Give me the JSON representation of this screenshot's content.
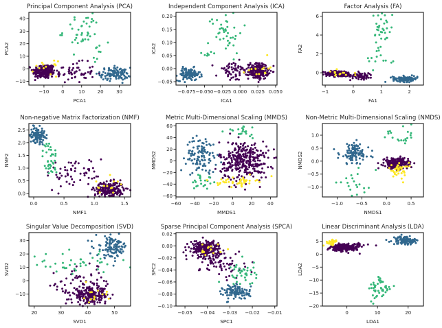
{
  "figure": {
    "layout": "3x3 grid of scatter plots",
    "class_colors": {
      "class_0": "#440154",
      "class_1": "#31688e",
      "class_2": "#35b779",
      "class_3": "#fde725"
    }
  },
  "chart_data": [
    {
      "type": "scatter",
      "title": "Principal Component Analysis (PCA)",
      "xlabel": "PCA1",
      "ylabel": "PCA2",
      "xlim": [
        -18,
        36
      ],
      "ylim": [
        -13,
        45
      ],
      "xticks": [
        -10,
        0,
        10,
        20,
        30
      ],
      "xticklabels": [
        "−10",
        "0",
        "10",
        "20",
        "30"
      ],
      "yticks": [
        -10,
        0,
        10,
        20,
        30,
        40
      ],
      "yticklabels": [
        "−10",
        "0",
        "10",
        "20",
        "30",
        "40"
      ],
      "clusters": [
        {
          "class": 0,
          "cx": -10,
          "cy": -2,
          "sx": 3,
          "sy": 3,
          "n": 220
        },
        {
          "class": 0,
          "cx": 5,
          "cy": -3,
          "sx": 6,
          "sy": 4,
          "n": 60
        },
        {
          "class": 1,
          "cx": 28,
          "cy": -4,
          "sx": 4,
          "sy": 2.5,
          "n": 110
        },
        {
          "class": 2,
          "cx": 10,
          "cy": 30,
          "sx": 5,
          "sy": 8,
          "n": 40
        },
        {
          "class": 2,
          "cx": 19,
          "cy": 13,
          "sx": 2,
          "sy": 3,
          "n": 8
        },
        {
          "class": 3,
          "cx": -9,
          "cy": 0,
          "sx": 3,
          "sy": 3,
          "n": 14
        }
      ]
    },
    {
      "type": "scatter",
      "title": "Independent Component Analysis (ICA)",
      "xlabel": "ICA1",
      "ylabel": "ICA2",
      "xlim": [
        -0.09,
        0.052
      ],
      "ylim": [
        -0.063,
        0.215
      ],
      "xticks": [
        -0.075,
        -0.05,
        -0.025,
        0.0,
        0.025,
        0.05
      ],
      "xticklabels": [
        "−0.075",
        "−0.050",
        "−0.025",
        "0.000",
        "0.025",
        "0.050"
      ],
      "yticks": [
        -0.05,
        0.0,
        0.05,
        0.1,
        0.15,
        0.2
      ],
      "yticklabels": [
        "−0.05",
        "0.00",
        "0.05",
        "0.10",
        "0.15",
        "0.20"
      ],
      "clusters": [
        {
          "class": 0,
          "cx": 0.026,
          "cy": -0.01,
          "sx": 0.007,
          "sy": 0.015,
          "n": 220
        },
        {
          "class": 0,
          "cx": -0.01,
          "cy": -0.01,
          "sx": 0.012,
          "sy": 0.02,
          "n": 60
        },
        {
          "class": 1,
          "cx": -0.072,
          "cy": -0.022,
          "sx": 0.008,
          "sy": 0.012,
          "n": 110
        },
        {
          "class": 2,
          "cx": -0.02,
          "cy": 0.14,
          "sx": 0.012,
          "sy": 0.04,
          "n": 40
        },
        {
          "class": 2,
          "cx": -0.045,
          "cy": 0.06,
          "sx": 0.005,
          "sy": 0.01,
          "n": 8
        },
        {
          "class": 3,
          "cx": 0.025,
          "cy": 0.0,
          "sx": 0.008,
          "sy": 0.015,
          "n": 14
        }
      ]
    },
    {
      "type": "scatter",
      "title": "Factor Analysis (FA)",
      "xlabel": "FA1",
      "ylabel": "FA2",
      "xlim": [
        -1.1,
        2.5
      ],
      "ylim": [
        -1.3,
        6.4
      ],
      "xticks": [
        -1,
        0,
        1,
        2
      ],
      "xticklabels": [
        "−1",
        "0",
        "1",
        "2"
      ],
      "yticks": [
        0,
        2,
        4,
        6
      ],
      "yticklabels": [
        "0",
        "2",
        "4",
        "6"
      ],
      "clusters": [
        {
          "class": 0,
          "cx": -0.5,
          "cy": -0.1,
          "sx": 0.25,
          "sy": 0.15,
          "n": 220
        },
        {
          "class": 0,
          "cx": 0.3,
          "cy": -0.3,
          "sx": 0.2,
          "sy": 0.2,
          "n": 60
        },
        {
          "class": 1,
          "cx": 1.85,
          "cy": -0.65,
          "sx": 0.22,
          "sy": 0.15,
          "n": 110
        },
        {
          "class": 2,
          "cx": 1.0,
          "cy": 4.5,
          "sx": 0.2,
          "sy": 1.2,
          "n": 40
        },
        {
          "class": 2,
          "cx": 0.8,
          "cy": 1.2,
          "sx": 0.4,
          "sy": 0.6,
          "n": 8
        },
        {
          "class": 3,
          "cx": -0.5,
          "cy": 0.0,
          "sx": 0.25,
          "sy": 0.2,
          "n": 14
        }
      ]
    },
    {
      "type": "scatter",
      "title": "Non-negative Matrix Factorization (NMF)",
      "xlabel": "NMF1",
      "ylabel": "NMF2",
      "xlim": [
        -0.08,
        1.6
      ],
      "ylim": [
        -0.13,
        2.75
      ],
      "xticks": [
        0.0,
        0.5,
        1.0,
        1.5
      ],
      "xticklabels": [
        "0.0",
        "0.5",
        "1.0",
        "1.5"
      ],
      "yticks": [
        0.0,
        0.5,
        1.0,
        1.5,
        2.0,
        2.5
      ],
      "yticklabels": [
        "0.0",
        "0.5",
        "1.0",
        "1.5",
        "2.0",
        "2.5"
      ],
      "clusters": [
        {
          "class": 0,
          "cx": 1.25,
          "cy": 0.15,
          "sx": 0.12,
          "sy": 0.15,
          "n": 220
        },
        {
          "class": 0,
          "cx": 0.7,
          "cy": 0.8,
          "sx": 0.25,
          "sy": 0.3,
          "n": 60
        },
        {
          "class": 1,
          "cx": 0.06,
          "cy": 2.3,
          "sx": 0.06,
          "sy": 0.15,
          "n": 110
        },
        {
          "class": 2,
          "cx": 0.27,
          "cy": 1.35,
          "sx": 0.06,
          "sy": 0.35,
          "n": 40
        },
        {
          "class": 3,
          "cx": 1.25,
          "cy": 0.3,
          "sx": 0.12,
          "sy": 0.15,
          "n": 14
        }
      ]
    },
    {
      "type": "scatter",
      "title": "Metric Multi-Dimensional Scaling (MMDS)",
      "xlabel": "MMDS1",
      "ylabel": "MMDS2",
      "xlim": [
        -60,
        47
      ],
      "ylim": [
        -62,
        64
      ],
      "xticks": [
        -60,
        -40,
        -20,
        0,
        20,
        40
      ],
      "xticklabels": [
        "−60",
        "−40",
        "−20",
        "0",
        "20",
        "40"
      ],
      "yticks": [
        -60,
        -40,
        -20,
        0,
        20,
        40,
        60
      ],
      "yticklabels": [
        "−60",
        "−40",
        "−20",
        "0",
        "20",
        "40",
        "60"
      ],
      "clusters": [
        {
          "class": 0,
          "cx": 12,
          "cy": 0,
          "sx": 13,
          "sy": 17,
          "n": 330
        },
        {
          "class": 1,
          "cx": -33,
          "cy": 10,
          "sx": 8,
          "sy": 15,
          "n": 110
        },
        {
          "class": 2,
          "cx": 8,
          "cy": 50,
          "sx": 12,
          "sy": 6,
          "n": 22
        },
        {
          "class": 2,
          "cx": -30,
          "cy": -35,
          "sx": 7,
          "sy": 8,
          "n": 22
        },
        {
          "class": 3,
          "cx": 5,
          "cy": -35,
          "sx": 10,
          "sy": 4,
          "n": 45
        }
      ]
    },
    {
      "type": "scatter",
      "title": "Non-Metric Multi-Dimensional Scaling (NMDS)",
      "xlabel": "NMDS1",
      "ylabel": "NMDS2",
      "xlim": [
        -1.3,
        0.75
      ],
      "ylim": [
        -1.38,
        1.45
      ],
      "xticks": [
        -1.0,
        -0.5,
        0.0,
        0.5
      ],
      "xticklabels": [
        "−1.0",
        "−0.5",
        "0.0",
        "0.5"
      ],
      "yticks": [
        -1.0,
        -0.5,
        0.0,
        0.5,
        1.0
      ],
      "yticklabels": [
        "−1.0",
        "−0.5",
        "0.0",
        "0.5",
        "1.0"
      ],
      "clusters": [
        {
          "class": 0,
          "cx": 0.2,
          "cy": -0.1,
          "sx": 0.12,
          "sy": 0.1,
          "n": 280
        },
        {
          "class": 1,
          "cx": -0.65,
          "cy": 0.3,
          "sx": 0.15,
          "sy": 0.2,
          "n": 110
        },
        {
          "class": 2,
          "cx": 0.3,
          "cy": 1.0,
          "sx": 0.25,
          "sy": 0.2,
          "n": 20
        },
        {
          "class": 2,
          "cx": -0.6,
          "cy": -0.9,
          "sx": 0.2,
          "sy": 0.25,
          "n": 20
        },
        {
          "class": 3,
          "cx": 0.25,
          "cy": -0.35,
          "sx": 0.1,
          "sy": 0.15,
          "n": 40
        }
      ]
    },
    {
      "type": "scatter",
      "title": "Singular Value Decomposition (SVD)",
      "xlabel": "SVD1",
      "ylabel": "SVD2",
      "xlim": [
        18,
        56
      ],
      "ylim": [
        -19,
        36
      ],
      "xticks": [
        20,
        30,
        40,
        50
      ],
      "xticklabels": [
        "20",
        "30",
        "40",
        "50"
      ],
      "yticks": [
        -10,
        0,
        10,
        20,
        30
      ],
      "yticklabels": [
        "−10",
        "0",
        "10",
        "20",
        "30"
      ],
      "clusters": [
        {
          "class": 0,
          "cx": 41,
          "cy": -11,
          "sx": 3.5,
          "sy": 3,
          "n": 220
        },
        {
          "class": 0,
          "cx": 38,
          "cy": -2,
          "sx": 6,
          "sy": 7,
          "n": 60
        },
        {
          "class": 1,
          "cx": 49,
          "cy": 25,
          "sx": 3,
          "sy": 4,
          "n": 110
        },
        {
          "class": 2,
          "cx": 35,
          "cy": 12,
          "sx": 8,
          "sy": 4,
          "n": 45
        },
        {
          "class": 3,
          "cx": 42,
          "cy": -10,
          "sx": 3,
          "sy": 3,
          "n": 14
        }
      ]
    },
    {
      "type": "scatter",
      "title": "Sparse Principal Component Analysis (SPCA)",
      "xlabel": "SPC1",
      "ylabel": "SPC2",
      "xlim": [
        -0.054,
        -0.009
      ],
      "ylim": [
        -0.1,
        0.022
      ],
      "xticks": [
        -0.05,
        -0.04,
        -0.03,
        -0.02,
        -0.01
      ],
      "xticklabels": [
        "−0.05",
        "−0.04",
        "−0.03",
        "−0.02",
        "−0.01"
      ],
      "yticks": [
        -0.1,
        -0.08,
        -0.06,
        -0.04,
        -0.02,
        0.0,
        0.02
      ],
      "yticklabels": [
        "−0.10",
        "−0.08",
        "−0.06",
        "−0.04",
        "−0.02",
        "0.00",
        "0.02"
      ],
      "clusters": [
        {
          "class": 0,
          "cx": -0.041,
          "cy": -0.005,
          "sx": 0.0035,
          "sy": 0.007,
          "n": 220
        },
        {
          "class": 0,
          "cx": -0.033,
          "cy": -0.03,
          "sx": 0.005,
          "sy": 0.012,
          "n": 60
        },
        {
          "class": 1,
          "cx": -0.027,
          "cy": -0.077,
          "sx": 0.003,
          "sy": 0.006,
          "n": 110
        },
        {
          "class": 2,
          "cx": -0.024,
          "cy": -0.045,
          "sx": 0.003,
          "sy": 0.01,
          "n": 40
        },
        {
          "class": 3,
          "cx": -0.04,
          "cy": -0.008,
          "sx": 0.003,
          "sy": 0.007,
          "n": 14
        }
      ]
    },
    {
      "type": "scatter",
      "title": "Linear Discriminant Analysis (LDA)",
      "xlabel": "LDA1",
      "ylabel": "LDA2",
      "xlim": [
        -8,
        25
      ],
      "ylim": [
        -20,
        8.3
      ],
      "xticks": [
        0,
        10,
        20
      ],
      "xticklabels": [
        "0",
        "10",
        "20"
      ],
      "yticks": [
        -20,
        -15,
        -10,
        -5,
        0,
        5
      ],
      "yticklabels": [
        "−20",
        "−15",
        "−10",
        "−5",
        "0",
        "5"
      ],
      "clusters": [
        {
          "class": 0,
          "cx": -1.5,
          "cy": 2.5,
          "sx": 1.8,
          "sy": 0.6,
          "n": 250
        },
        {
          "class": 0,
          "cx": 3,
          "cy": 3,
          "sx": 2,
          "sy": 1,
          "n": 30
        },
        {
          "class": 1,
          "cx": 19,
          "cy": 5.3,
          "sx": 2,
          "sy": 0.8,
          "n": 110
        },
        {
          "class": 2,
          "cx": 11,
          "cy": -13.5,
          "sx": 1.8,
          "sy": 2.5,
          "n": 48
        },
        {
          "class": 3,
          "cx": -5,
          "cy": 4.5,
          "sx": 1,
          "sy": 0.6,
          "n": 30
        }
      ]
    }
  ]
}
